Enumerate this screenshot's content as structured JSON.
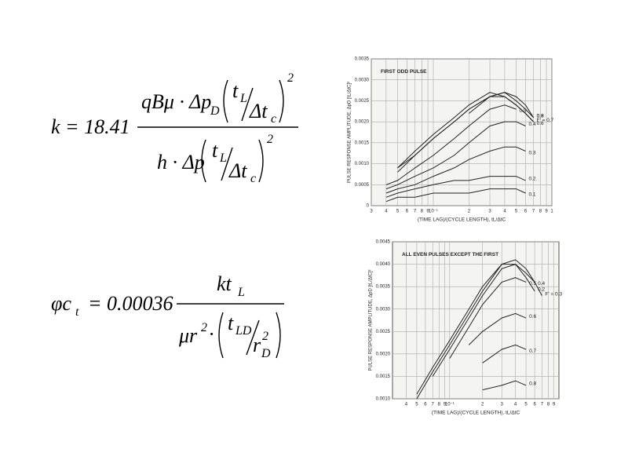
{
  "equations": [
    {
      "tokens": [
        "k = 18.41",
        "qBμ · Δp",
        "D",
        "t",
        "L",
        "Δt",
        "c",
        "2",
        "h · Δp",
        "t",
        "L",
        "Δt",
        "c",
        "2"
      ]
    },
    {
      "tokens": [
        "φc",
        "t",
        "= 0.00036",
        "kt",
        "L",
        "μr",
        "2",
        "·",
        "t",
        "LD",
        "r",
        "D",
        "2"
      ]
    }
  ],
  "chart_data": [
    {
      "type": "line",
      "xscale": "log",
      "grid": true,
      "annotation": "FIRST ODD PULSE",
      "x_label": "(TIME LAG)/(CYCLE LENGTH), tL/ΔtC",
      "y_label": "PULSE RESPONSE AMPLITUDE, ΔpD [tL/ΔtC]²",
      "xlim": [
        0.03,
        1
      ],
      "ylim": [
        0,
        0.0035
      ],
      "xticks": [
        {
          "value": 0.03,
          "label": "3"
        },
        {
          "value": 0.04,
          "label": "4"
        },
        {
          "value": 0.05,
          "label": "5"
        },
        {
          "value": 0.06,
          "label": "6"
        },
        {
          "value": 0.07,
          "label": "7"
        },
        {
          "value": 0.08,
          "label": "8"
        },
        {
          "value": 0.09,
          "label": "9"
        },
        {
          "value": 0.1,
          "label": "10⁻¹"
        },
        {
          "value": 0.2,
          "label": "2"
        },
        {
          "value": 0.3,
          "label": "3"
        },
        {
          "value": 0.4,
          "label": "4"
        },
        {
          "value": 0.5,
          "label": "5"
        },
        {
          "value": 0.6,
          "label": "6"
        },
        {
          "value": 0.7,
          "label": "7"
        },
        {
          "value": 0.8,
          "label": "8"
        },
        {
          "value": 0.9,
          "label": "9"
        },
        1
      ],
      "yticks": [
        0,
        0.0005,
        {
          "value": 0.001,
          "label": "0.0010"
        },
        0.0015,
        {
          "value": 0.002,
          "label": "0.0020"
        },
        0.0025,
        {
          "value": 0.003,
          "label": "0.0030"
        },
        0.0035
      ],
      "x": [
        0.04,
        0.05,
        0.07,
        0.1,
        0.15,
        0.2,
        0.3,
        0.4,
        0.5,
        0.6,
        0.7
      ],
      "series": [
        {
          "name": "F' = 0.7",
          "color": "#222222",
          "values": [
            null,
            0.0009,
            0.0013,
            0.0017,
            0.0021,
            0.0024,
            0.0027,
            0.0026,
            0.0024,
            0.0022,
            0.002
          ]
        },
        {
          "name": "0.6",
          "color": "#222222",
          "values": [
            null,
            0.0009,
            0.0012,
            0.0016,
            0.002,
            0.0023,
            0.0026,
            0.0026,
            0.0024,
            0.0022,
            0.002
          ]
        },
        {
          "name": "0.8",
          "color": "#222222",
          "values": [
            null,
            0.0008,
            0.0012,
            0.0016,
            0.002,
            0.0023,
            0.0026,
            0.0027,
            0.0025,
            0.0023,
            0.0021
          ]
        },
        {
          "name": "0.5",
          "color": "#222222",
          "values": [
            0.0005,
            0.0006,
            0.0009,
            0.0012,
            0.0016,
            0.0019,
            0.0023,
            0.0024,
            0.0023,
            null,
            null
          ]
        },
        {
          "name": "0.4",
          "color": "#222222",
          "values": [
            0.0004,
            0.0005,
            0.0007,
            0.0009,
            0.0012,
            0.0015,
            0.0019,
            0.002,
            0.002,
            0.0019,
            null
          ]
        },
        {
          "name": "0.3",
          "color": "#222222",
          "values": [
            0.0003,
            0.0004,
            0.0005,
            0.0007,
            0.0009,
            0.0011,
            0.0013,
            0.0014,
            0.0014,
            0.0013,
            null
          ]
        },
        {
          "name": "0.2",
          "color": "#222222",
          "values": [
            0.0002,
            0.0003,
            0.0004,
            0.0005,
            0.0006,
            0.0006,
            0.0007,
            0.0007,
            0.0007,
            0.0006,
            null
          ]
        },
        {
          "name": "0.1",
          "color": "#222222",
          "values": [
            0.0001,
            0.0002,
            0.0002,
            0.0003,
            0.0003,
            0.0003,
            0.0004,
            0.0004,
            0.0004,
            0.0003,
            null
          ]
        },
        {
          "name": "0.9",
          "color": "#222222",
          "values": [
            null,
            null,
            null,
            null,
            null,
            0.0022,
            0.0026,
            0.0027,
            0.0026,
            0.0024,
            0.0021
          ]
        }
      ]
    },
    {
      "type": "line",
      "xscale": "log",
      "grid": true,
      "annotation": "ALL EVEN PULSES EXCEPT THE FIRST",
      "x_label": "(TIME LAG)/(CYCLE LENGTH), tL/ΔtC",
      "y_label": "PULSE RESPONSE AMPLITUDE, ΔpD [tL/ΔtC]²",
      "xlim": [
        0.03,
        1
      ],
      "ylim": [
        0.001,
        0.0045
      ],
      "xticks": [
        {
          "value": 0.04,
          "label": "4"
        },
        {
          "value": 0.05,
          "label": "5"
        },
        {
          "value": 0.06,
          "label": "6"
        },
        {
          "value": 0.07,
          "label": "7"
        },
        {
          "value": 0.08,
          "label": "8"
        },
        {
          "value": 0.09,
          "label": "9"
        },
        {
          "value": 0.1,
          "label": "10⁻¹"
        },
        {
          "value": 0.2,
          "label": "2"
        },
        {
          "value": 0.3,
          "label": "3"
        },
        {
          "value": 0.4,
          "label": "4"
        },
        {
          "value": 0.5,
          "label": "5"
        },
        {
          "value": 0.6,
          "label": "6"
        },
        {
          "value": 0.7,
          "label": "7"
        },
        {
          "value": 0.8,
          "label": "8"
        },
        {
          "value": 0.9,
          "label": "9"
        }
      ],
      "yticks": [
        {
          "value": 0.001,
          "label": "0.0010"
        },
        0.0015,
        {
          "value": 0.002,
          "label": "0.0020"
        },
        0.0025,
        {
          "value": 0.003,
          "label": "0.0030"
        },
        0.0035,
        {
          "value": 0.004,
          "label": "0.0040"
        },
        0.0045
      ],
      "x": [
        0.04,
        0.05,
        0.07,
        0.1,
        0.15,
        0.2,
        0.3,
        0.4,
        0.5,
        0.6,
        0.7
      ],
      "series": [
        {
          "name": "F' = 0.3",
          "color": "#222222",
          "values": [
            null,
            0.001,
            0.0016,
            0.0022,
            0.0029,
            0.0034,
            0.004,
            0.0041,
            0.0039,
            0.0036,
            0.0033
          ]
        },
        {
          "name": "0.4",
          "color": "#222222",
          "values": [
            null,
            null,
            0.0015,
            0.0021,
            0.0028,
            0.0033,
            0.0039,
            0.004,
            0.0038,
            0.0036,
            null
          ]
        },
        {
          "name": "0.2",
          "color": "#222222",
          "values": [
            null,
            0.0011,
            0.0017,
            0.0023,
            0.003,
            0.0035,
            0.004,
            0.004,
            0.0037,
            0.0034,
            null
          ]
        },
        {
          "name": "0.5",
          "color": "#222222",
          "values": [
            null,
            null,
            null,
            0.0019,
            0.0026,
            0.0031,
            0.0036,
            0.0037,
            0.0036,
            null,
            null
          ]
        },
        {
          "name": "0.6",
          "color": "#222222",
          "values": [
            null,
            null,
            null,
            null,
            0.0022,
            0.0025,
            0.0028,
            0.0029,
            0.0028,
            null,
            null
          ]
        },
        {
          "name": "0.7",
          "color": "#222222",
          "values": [
            null,
            null,
            null,
            null,
            null,
            0.0018,
            0.0021,
            0.0022,
            0.0021,
            null,
            null
          ]
        },
        {
          "name": "0.8",
          "color": "#222222",
          "values": [
            null,
            null,
            null,
            null,
            null,
            0.0012,
            0.0013,
            0.0014,
            0.0013,
            null,
            null
          ]
        }
      ]
    }
  ]
}
